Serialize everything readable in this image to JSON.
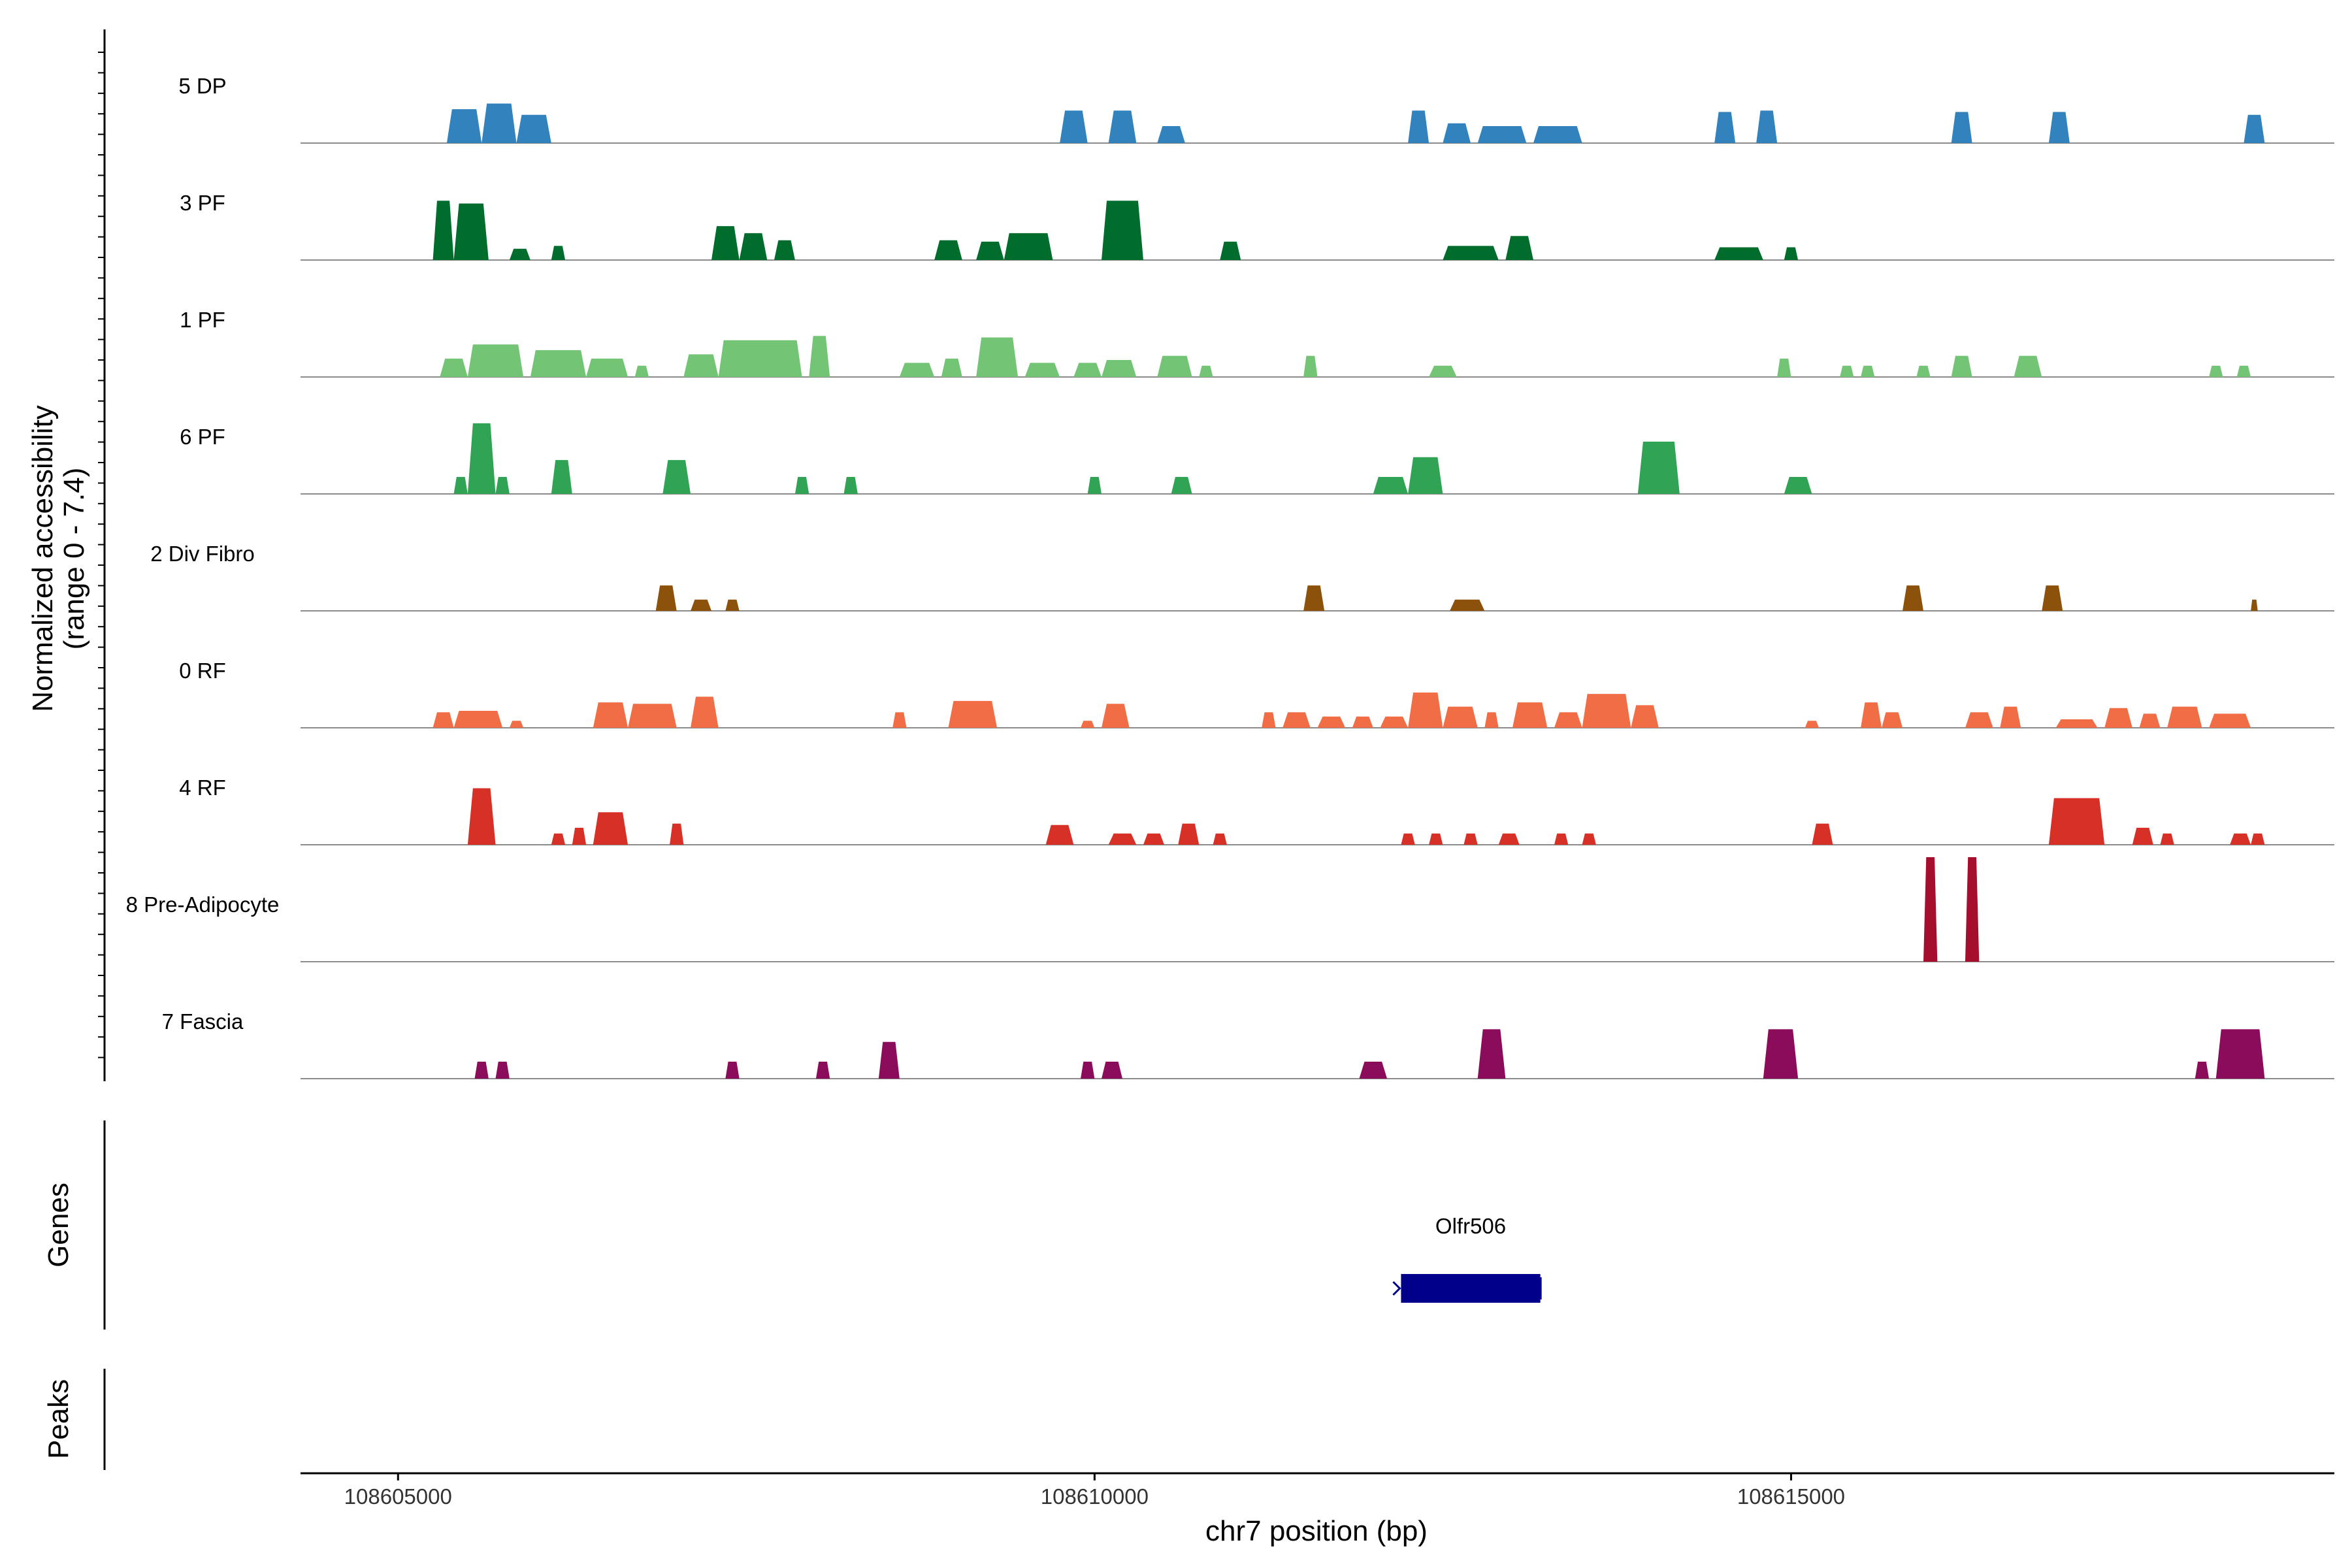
{
  "chart_data": {
    "type": "area",
    "region": "chr7",
    "xlabel": "chr7 position (bp)",
    "xlim": [
      108604300,
      108618900
    ],
    "x_ticks": [
      108605000,
      108610000,
      108615000
    ],
    "x_tick_labels": [
      "108605000",
      "108610000",
      "108615000"
    ],
    "ylabel_line1": "Normalized accessibility",
    "ylabel_line2": "(range 0 - 7.4)",
    "ylim": [
      0,
      7.4
    ],
    "series": [
      {
        "name": "5 DP",
        "color": "#3182bd",
        "peaks": [
          [
            108605350,
            108605600,
            2.4
          ],
          [
            108605600,
            108605850,
            2.8
          ],
          [
            108605850,
            108606100,
            2.0
          ],
          [
            108609750,
            108609950,
            2.3
          ],
          [
            108610100,
            108610300,
            2.3
          ],
          [
            108610450,
            108610650,
            1.2
          ],
          [
            108612250,
            108612400,
            2.3
          ],
          [
            108612500,
            108612700,
            1.4
          ],
          [
            108612750,
            108613100,
            1.2
          ],
          [
            108613150,
            108613500,
            1.2
          ],
          [
            108614450,
            108614600,
            2.2
          ],
          [
            108614750,
            108614900,
            2.3
          ],
          [
            108616150,
            108616300,
            2.2
          ],
          [
            108616850,
            108617000,
            2.2
          ],
          [
            108618250,
            108618400,
            2.0
          ]
        ]
      },
      {
        "name": "3 PF",
        "color": "#006d2c",
        "peaks": [
          [
            108605250,
            108605400,
            4.2
          ],
          [
            108605400,
            108605650,
            4.0
          ],
          [
            108605800,
            108605950,
            0.8
          ],
          [
            108606100,
            108606200,
            1.0
          ],
          [
            108607250,
            108607450,
            2.4
          ],
          [
            108607450,
            108607650,
            1.9
          ],
          [
            108607700,
            108607850,
            1.4
          ],
          [
            108608850,
            108609050,
            1.4
          ],
          [
            108609150,
            108609350,
            1.3
          ],
          [
            108609350,
            108609700,
            1.9
          ],
          [
            108610050,
            108610350,
            4.2
          ],
          [
            108610900,
            108611050,
            1.3
          ],
          [
            108612500,
            108612900,
            1.0
          ],
          [
            108612950,
            108613150,
            1.7
          ],
          [
            108614450,
            108614800,
            0.9
          ],
          [
            108614950,
            108615050,
            0.9
          ]
        ]
      },
      {
        "name": "1 PF",
        "color": "#74c476",
        "peaks": [
          [
            108605300,
            108605500,
            1.3
          ],
          [
            108605500,
            108605900,
            2.3
          ],
          [
            108605950,
            108606350,
            1.9
          ],
          [
            108606350,
            108606650,
            1.3
          ],
          [
            108606700,
            108606800,
            0.8
          ],
          [
            108607050,
            108607300,
            1.6
          ],
          [
            108607300,
            108607900,
            2.6
          ],
          [
            108607950,
            108608100,
            2.9
          ],
          [
            108608600,
            108608850,
            1.0
          ],
          [
            108608900,
            108609050,
            1.3
          ],
          [
            108609150,
            108609450,
            2.8
          ],
          [
            108609500,
            108609750,
            1.0
          ],
          [
            108609850,
            108610050,
            1.0
          ],
          [
            108610050,
            108610300,
            1.2
          ],
          [
            108610450,
            108610700,
            1.5
          ],
          [
            108610750,
            108610850,
            0.8
          ],
          [
            108611500,
            108611600,
            1.5
          ],
          [
            108612400,
            108612600,
            0.8
          ],
          [
            108614900,
            108615000,
            1.3
          ],
          [
            108615350,
            108615450,
            0.8
          ],
          [
            108615500,
            108615600,
            0.8
          ],
          [
            108615900,
            108616000,
            0.8
          ],
          [
            108616150,
            108616300,
            1.5
          ],
          [
            108616600,
            108616800,
            1.5
          ],
          [
            108618000,
            108618100,
            0.8
          ],
          [
            108618200,
            108618300,
            0.8
          ]
        ]
      },
      {
        "name": "6 PF",
        "color": "#31a354",
        "peaks": [
          [
            108605400,
            108605500,
            1.2
          ],
          [
            108605500,
            108605700,
            5.0
          ],
          [
            108605700,
            108605800,
            1.2
          ],
          [
            108606100,
            108606250,
            2.4
          ],
          [
            108606900,
            108607100,
            2.4
          ],
          [
            108607850,
            108607950,
            1.2
          ],
          [
            108608200,
            108608300,
            1.2
          ],
          [
            108609950,
            108610050,
            1.2
          ],
          [
            108610550,
            108610700,
            1.2
          ],
          [
            108612000,
            108612250,
            1.2
          ],
          [
            108612250,
            108612500,
            2.6
          ],
          [
            108613900,
            108614200,
            3.7
          ],
          [
            108614950,
            108615150,
            1.2
          ]
        ]
      },
      {
        "name": "2 Div Fibro",
        "color": "#8c510a",
        "peaks": [
          [
            108606850,
            108607000,
            1.8
          ],
          [
            108607100,
            108607250,
            0.8
          ],
          [
            108607350,
            108607450,
            0.8
          ],
          [
            108611500,
            108611650,
            1.8
          ],
          [
            108612550,
            108612800,
            0.8
          ],
          [
            108615800,
            108615950,
            1.8
          ],
          [
            108616800,
            108616950,
            1.8
          ],
          [
            108618300,
            108618350,
            0.8
          ]
        ]
      },
      {
        "name": "0 RF",
        "color": "#f16d45",
        "peaks": [
          [
            108605250,
            108605400,
            1.1
          ],
          [
            108605400,
            108605750,
            1.2
          ],
          [
            108605800,
            108605900,
            0.5
          ],
          [
            108606400,
            108606650,
            1.8
          ],
          [
            108606650,
            108607000,
            1.7
          ],
          [
            108607100,
            108607300,
            2.2
          ],
          [
            108608550,
            108608650,
            1.1
          ],
          [
            108608950,
            108609300,
            1.9
          ],
          [
            108609900,
            108610000,
            0.5
          ],
          [
            108610050,
            108610250,
            1.7
          ],
          [
            108611200,
            108611300,
            1.1
          ],
          [
            108611350,
            108611550,
            1.1
          ],
          [
            108611600,
            108611800,
            0.8
          ],
          [
            108611850,
            108612000,
            0.8
          ],
          [
            108612050,
            108612250,
            0.8
          ],
          [
            108612250,
            108612500,
            2.5
          ],
          [
            108612500,
            108612750,
            1.5
          ],
          [
            108612800,
            108612900,
            1.1
          ],
          [
            108613000,
            108613250,
            1.8
          ],
          [
            108613300,
            108613500,
            1.1
          ],
          [
            108613500,
            108613850,
            2.4
          ],
          [
            108613850,
            108614050,
            1.6
          ],
          [
            108615100,
            108615200,
            0.5
          ],
          [
            108615500,
            108615650,
            1.8
          ],
          [
            108615650,
            108615800,
            1.1
          ],
          [
            108616250,
            108616450,
            1.1
          ],
          [
            108616500,
            108616650,
            1.5
          ],
          [
            108616900,
            108617200,
            0.6
          ],
          [
            108617250,
            108617450,
            1.4
          ],
          [
            108617500,
            108617650,
            1.0
          ],
          [
            108617700,
            108617950,
            1.5
          ],
          [
            108618000,
            108618300,
            1.0
          ]
        ]
      },
      {
        "name": "4 RF",
        "color": "#d73027",
        "peaks": [
          [
            108605500,
            108605700,
            4.0
          ],
          [
            108606100,
            108606200,
            0.8
          ],
          [
            108606250,
            108606350,
            1.2
          ],
          [
            108606400,
            108606650,
            2.3
          ],
          [
            108606950,
            108607050,
            1.5
          ],
          [
            108609650,
            108609850,
            1.4
          ],
          [
            108610100,
            108610300,
            0.8
          ],
          [
            108610350,
            108610500,
            0.8
          ],
          [
            108610600,
            108610750,
            1.5
          ],
          [
            108610850,
            108610950,
            0.8
          ],
          [
            108612200,
            108612300,
            0.8
          ],
          [
            108612400,
            108612500,
            0.8
          ],
          [
            108612650,
            108612750,
            0.8
          ],
          [
            108612900,
            108613050,
            0.8
          ],
          [
            108613300,
            108613400,
            0.8
          ],
          [
            108613500,
            108613600,
            0.8
          ],
          [
            108615150,
            108615300,
            1.5
          ],
          [
            108616850,
            108617250,
            3.3
          ],
          [
            108617450,
            108617600,
            1.2
          ],
          [
            108617650,
            108617750,
            0.8
          ],
          [
            108618150,
            108618300,
            0.8
          ],
          [
            108618300,
            108618400,
            0.8
          ]
        ]
      },
      {
        "name": "8 Pre-Adipocyte",
        "color": "#a50f2d",
        "peaks": [
          [
            108615950,
            108616050,
            7.4
          ],
          [
            108616250,
            108616350,
            7.4
          ]
        ]
      },
      {
        "name": "7 Fascia",
        "color": "#8b0c5a",
        "peaks": [
          [
            108605550,
            108605650,
            1.2
          ],
          [
            108605700,
            108605800,
            1.2
          ],
          [
            108607350,
            108607450,
            1.2
          ],
          [
            108608000,
            108608100,
            1.2
          ],
          [
            108608450,
            108608600,
            2.6
          ],
          [
            108609900,
            108610000,
            1.2
          ],
          [
            108610050,
            108610200,
            1.2
          ],
          [
            108611900,
            108612100,
            1.2
          ],
          [
            108612750,
            108612950,
            3.5
          ],
          [
            108614800,
            108615050,
            3.5
          ],
          [
            108617900,
            108618000,
            1.2
          ],
          [
            108618050,
            108618400,
            3.5
          ]
        ]
      }
    ],
    "genes_label": "Genes",
    "peaks_label": "Peaks",
    "genes": [
      {
        "name": "Olfr506",
        "start": 108612200,
        "end": 108613200,
        "strand": "-",
        "color": "#00008b"
      }
    ]
  }
}
